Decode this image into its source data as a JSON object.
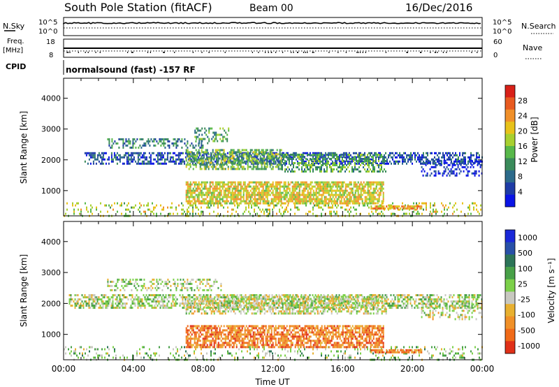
{
  "header": {
    "title": "South Pole Station (fitACF)",
    "beam": "Beam 00",
    "date": "16/Dec/2016"
  },
  "noise_panel": {
    "left_label": "N.Sky",
    "right_label": "N.Search",
    "left_ticks": [
      "10^5",
      "10^0"
    ],
    "right_ticks": [
      "10^5",
      "10^0"
    ]
  },
  "freq_panel": {
    "left_label_line1": "Freq.",
    "left_label_line2": "[MHz]",
    "right_label": "Nave",
    "left_ticks": [
      "18",
      "8"
    ],
    "right_ticks": [
      "60",
      "0"
    ]
  },
  "cpid_panel": {
    "label": "CPID",
    "text": "normalsound (fast) -157 RF"
  },
  "colors": {
    "power": [
      "#0a14e6",
      "#1e3ca6",
      "#2c6a8a",
      "#3a8a5a",
      "#58b84a",
      "#a8d030",
      "#e8c21a",
      "#f0902a",
      "#e85a20",
      "#d82018"
    ],
    "velocity": [
      "#1a28d8",
      "#2850a8",
      "#2c7458",
      "#48a048",
      "#7cd04a",
      "#c8c8c0",
      "#e8b030",
      "#f09028",
      "#f06a18",
      "#e03018"
    ]
  },
  "chart_data": [
    {
      "type": "heatmap",
      "name": "power",
      "xlabel": "",
      "ylabel": "Slant Range [km]",
      "ylim": [
        180,
        4650
      ],
      "xlim_hours": [
        0,
        24
      ],
      "yticks": [
        "1000",
        "2000",
        "3000",
        "4000"
      ],
      "colorbar_label": "Power [dB]",
      "colorbar_ticks": [
        "4",
        "8",
        "12",
        "16",
        "20",
        "24",
        "28"
      ],
      "bands": [
        {
          "x0": 0.0,
          "x1": 24.0,
          "y0": 200,
          "y1": 620,
          "level": 0.55,
          "density": 0.22
        },
        {
          "x0": 1.2,
          "x1": 24.0,
          "y0": 1850,
          "y1": 2250,
          "level": 0.18,
          "density": 0.55
        },
        {
          "x0": 2.5,
          "x1": 8.0,
          "y0": 2400,
          "y1": 2700,
          "level": 0.3,
          "density": 0.35
        },
        {
          "x0": 7.0,
          "x1": 12.5,
          "y0": 1700,
          "y1": 2350,
          "level": 0.45,
          "density": 0.6
        },
        {
          "x0": 12.5,
          "x1": 18.5,
          "y0": 1650,
          "y1": 2200,
          "level": 0.4,
          "density": 0.5
        },
        {
          "x0": 7.5,
          "x1": 9.5,
          "y0": 2550,
          "y1": 3050,
          "level": 0.4,
          "density": 0.4
        },
        {
          "x0": 7.0,
          "x1": 18.3,
          "y0": 580,
          "y1": 1300,
          "level": 0.62,
          "density": 0.75
        },
        {
          "x0": 17.6,
          "x1": 20.5,
          "y0": 420,
          "y1": 520,
          "level": 0.7,
          "density": 0.85
        },
        {
          "x0": 20.5,
          "x1": 24.0,
          "y0": 1500,
          "y1": 2000,
          "level": 0.1,
          "density": 0.35
        }
      ]
    },
    {
      "type": "heatmap",
      "name": "velocity",
      "xlabel": "Time UT",
      "ylabel": "Slant Range [km]",
      "ylim": [
        180,
        4650
      ],
      "xlim_hours": [
        0,
        24
      ],
      "xticks": [
        "00:00",
        "04:00",
        "08:00",
        "12:00",
        "16:00",
        "20:00",
        "00:00"
      ],
      "yticks": [
        "1000",
        "2000",
        "3000",
        "4000"
      ],
      "colorbar_label": "Velocity [m s⁻¹]",
      "colorbar_ticks": [
        "1000",
        "500",
        "100",
        "25",
        "-25",
        "-100",
        "-500",
        "-1000"
      ],
      "bands": [
        {
          "x0": 0.0,
          "x1": 24.0,
          "y0": 200,
          "y1": 620,
          "level": 0.45,
          "density": 0.18
        },
        {
          "x0": 0.3,
          "x1": 24.0,
          "y0": 1850,
          "y1": 2300,
          "level": 0.5,
          "density": 0.55
        },
        {
          "x0": 2.5,
          "x1": 9.0,
          "y0": 2400,
          "y1": 2800,
          "level": 0.5,
          "density": 0.35
        },
        {
          "x0": 7.0,
          "x1": 18.5,
          "y0": 1650,
          "y1": 2250,
          "level": 0.55,
          "density": 0.5
        },
        {
          "x0": 7.0,
          "x1": 18.3,
          "y0": 600,
          "y1": 1300,
          "level": 0.8,
          "density": 0.7
        },
        {
          "x0": 17.6,
          "x1": 20.5,
          "y0": 420,
          "y1": 520,
          "level": 0.78,
          "density": 0.85
        },
        {
          "x0": 20.5,
          "x1": 24.0,
          "y0": 1500,
          "y1": 2000,
          "level": 0.55,
          "density": 0.3
        }
      ]
    }
  ]
}
